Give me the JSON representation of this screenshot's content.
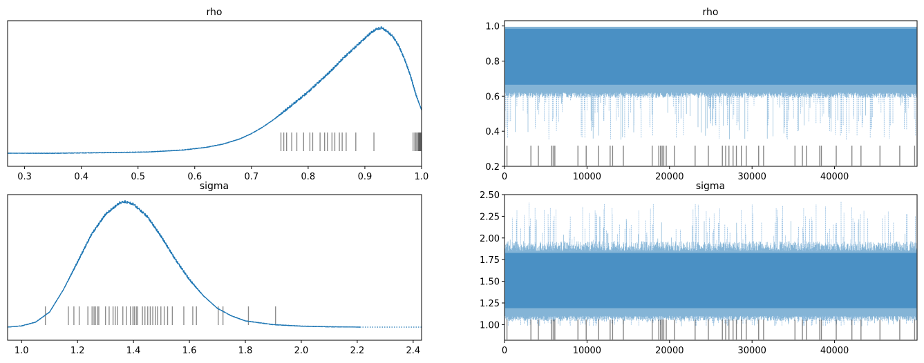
{
  "chart_data": [
    {
      "id": "rho-density",
      "type": "line",
      "title": "rho",
      "xlabel": "",
      "ylabel": "",
      "xlim": [
        0.27,
        1.0
      ],
      "xticks": [
        0.3,
        0.4,
        0.5,
        0.6,
        0.7,
        0.8,
        0.9,
        1.0
      ],
      "xtick_labels": [
        "0.3",
        "0.4",
        "0.5",
        "0.6",
        "0.7",
        "0.8",
        "0.9",
        "1.0"
      ],
      "yticks_visible": false,
      "grid": false,
      "color": "#1f77b4",
      "series": [
        {
          "style": "solid",
          "x": [
            0.27,
            0.35,
            0.45,
            0.52,
            0.58,
            0.62,
            0.65,
            0.68,
            0.7,
            0.72,
            0.74,
            0.76,
            0.78,
            0.8,
            0.82,
            0.84,
            0.86,
            0.88,
            0.9,
            0.91,
            0.92,
            0.93,
            0.94,
            0.95,
            0.96,
            0.97,
            0.98,
            0.99,
            1.0
          ],
          "y": [
            0.0,
            0.0,
            0.005,
            0.01,
            0.025,
            0.045,
            0.07,
            0.11,
            0.15,
            0.2,
            0.26,
            0.33,
            0.4,
            0.47,
            0.55,
            0.63,
            0.72,
            0.8,
            0.88,
            0.92,
            0.95,
            0.96,
            0.93,
            0.89,
            0.82,
            0.72,
            0.6,
            0.45,
            0.33
          ]
        }
      ],
      "rug": [
        0.752,
        0.757,
        0.762,
        0.771,
        0.78,
        0.792,
        0.803,
        0.808,
        0.821,
        0.829,
        0.834,
        0.842,
        0.847,
        0.855,
        0.86,
        0.867,
        0.884,
        0.916,
        0.985,
        0.988,
        0.99,
        0.992,
        0.994,
        0.995,
        0.996,
        0.997,
        0.998,
        0.999
      ]
    },
    {
      "id": "rho-trace",
      "type": "line",
      "title": "rho",
      "xlabel": "",
      "ylabel": "",
      "xlim": [
        0,
        49999
      ],
      "ylim": [
        0.2,
        1.03
      ],
      "xticks": [
        0,
        10000,
        20000,
        30000,
        40000
      ],
      "xtick_labels": [
        "0",
        "10000",
        "20000",
        "30000",
        "40000"
      ],
      "yticks": [
        0.2,
        0.4,
        0.6,
        0.8,
        1.0
      ],
      "ytick_labels": [
        "0.2",
        "0.4",
        "0.6",
        "0.8",
        "1.0"
      ],
      "grid": false,
      "color": "#1f77b4",
      "band": {
        "lower": 0.62,
        "upper": 0.995,
        "min_dips": 0.35
      },
      "rug_draws": [
        300,
        3200,
        4100,
        5700,
        5900,
        6100,
        8900,
        9900,
        11400,
        12800,
        13100,
        14400,
        17900,
        18700,
        18900,
        19100,
        19300,
        19600,
        20600,
        23100,
        24700,
        26400,
        26800,
        27200,
        27700,
        28100,
        28700,
        29300,
        30800,
        31400,
        35200,
        36100,
        36600,
        38200,
        38400,
        40200,
        42100,
        43200,
        45500,
        47900,
        49700
      ]
    },
    {
      "id": "sigma-density",
      "type": "line",
      "title": "sigma",
      "xlabel": "",
      "ylabel": "",
      "xlim": [
        0.95,
        2.43
      ],
      "xticks": [
        1.0,
        1.2,
        1.4,
        1.6,
        1.8,
        2.0,
        2.2,
        2.4
      ],
      "xtick_labels": [
        "1.0",
        "1.2",
        "1.4",
        "1.6",
        "1.8",
        "2.0",
        "2.2",
        "2.4"
      ],
      "yticks_visible": false,
      "grid": false,
      "color": "#1f77b4",
      "series": [
        {
          "style": "solid",
          "x": [
            0.95,
            1.0,
            1.05,
            1.1,
            1.15,
            1.2,
            1.25,
            1.3,
            1.35,
            1.37,
            1.4,
            1.45,
            1.5,
            1.55,
            1.6,
            1.65,
            1.7,
            1.75,
            1.8,
            1.9,
            2.0,
            2.1,
            2.21
          ],
          "y": [
            0.0,
            0.01,
            0.04,
            0.12,
            0.3,
            0.52,
            0.74,
            0.9,
            0.99,
            1.0,
            0.98,
            0.88,
            0.72,
            0.54,
            0.38,
            0.25,
            0.15,
            0.09,
            0.05,
            0.02,
            0.008,
            0.003,
            0.0
          ]
        },
        {
          "style": "dotted",
          "x": [
            2.21,
            2.43
          ],
          "y": [
            0.0,
            0.0
          ]
        }
      ],
      "rug": [
        1.085,
        1.167,
        1.187,
        1.206,
        1.237,
        1.252,
        1.259,
        1.264,
        1.271,
        1.276,
        1.3,
        1.313,
        1.327,
        1.335,
        1.343,
        1.362,
        1.375,
        1.389,
        1.398,
        1.403,
        1.41,
        1.415,
        1.432,
        1.441,
        1.451,
        1.46,
        1.469,
        1.478,
        1.486,
        1.498,
        1.51,
        1.522,
        1.539,
        1.58,
        1.612,
        1.625,
        1.703,
        1.72,
        1.811,
        1.908
      ]
    },
    {
      "id": "sigma-trace",
      "type": "line",
      "title": "sigma",
      "xlabel": "",
      "ylabel": "",
      "xlim": [
        0,
        49999
      ],
      "ylim": [
        0.82,
        2.5
      ],
      "xticks": [
        0,
        10000,
        20000,
        30000,
        40000
      ],
      "xtick_labels": [
        "0",
        "10000",
        "20000",
        "30000",
        "40000"
      ],
      "yticks": [
        1.0,
        1.25,
        1.5,
        1.75,
        2.0,
        2.25,
        2.5
      ],
      "ytick_labels": [
        "1.00",
        "1.25",
        "1.50",
        "1.75",
        "2.00",
        "2.25",
        "2.50"
      ],
      "grid": false,
      "color": "#1f77b4",
      "band": {
        "lower": 1.1,
        "upper": 1.85,
        "max_spikes": 2.42,
        "min_dips": 0.98
      },
      "rug_draws": [
        300,
        3200,
        4100,
        5700,
        5900,
        6100,
        8900,
        9900,
        11400,
        12800,
        13100,
        14400,
        17900,
        18700,
        18900,
        19100,
        19300,
        19600,
        20600,
        23100,
        24700,
        26400,
        26800,
        27200,
        27700,
        28100,
        28700,
        29300,
        30800,
        31400,
        35200,
        36100,
        36600,
        38200,
        38400,
        40200,
        42100,
        43200,
        45500,
        47900,
        49700
      ]
    }
  ]
}
